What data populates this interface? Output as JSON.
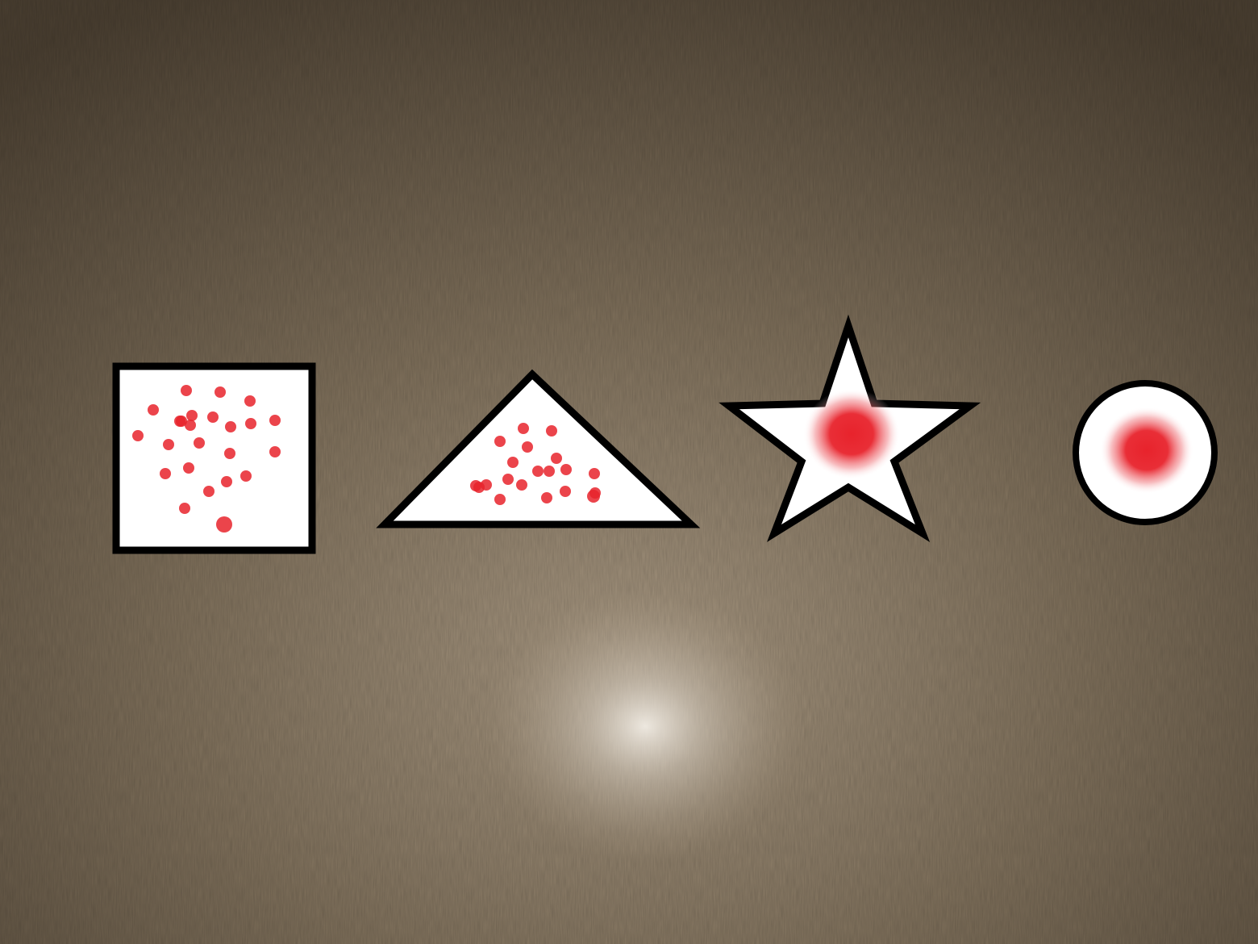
{
  "scene": {
    "surface": "wood-tabletop",
    "surface_color": "#7a6a55",
    "shape_fill": "#ffffff",
    "outline_color": "#000000",
    "mark_color": "#e8232c",
    "shapes": [
      {
        "name": "square",
        "marks": "dots",
        "dot_count": 24
      },
      {
        "name": "triangle",
        "marks": "dots",
        "dot_count": 20
      },
      {
        "name": "star",
        "marks": "blur-spot"
      },
      {
        "name": "circle",
        "marks": "blur-spot"
      }
    ]
  }
}
